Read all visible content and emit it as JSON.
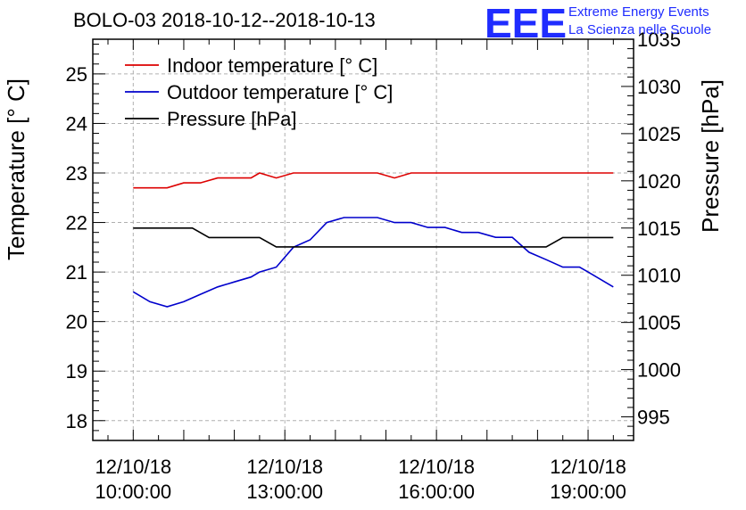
{
  "chart_data": {
    "type": "line",
    "title": "BOLO-03 2018-10-12--2018-10-13",
    "logo": {
      "letters": "EEE",
      "line1": "Extreme Energy Events",
      "line2": "La Scienza nelle Scuole"
    },
    "ylabel": "Temperature [° C]",
    "y2label": "Pressure [hPa]",
    "ylim": [
      17.6,
      25.7
    ],
    "y2lim": [
      992.5,
      1035
    ],
    "xlim": [
      9.2,
      19.9
    ],
    "grid": true,
    "legend_position": "top-left",
    "x_ticks": [
      {
        "value": 10,
        "line1": "12/10/18",
        "line2": "10:00:00"
      },
      {
        "value": 13,
        "line1": "12/10/18",
        "line2": "13:00:00"
      },
      {
        "value": 16,
        "line1": "12/10/18",
        "line2": "16:00:00"
      },
      {
        "value": 19,
        "line1": "12/10/18",
        "line2": "19:00:00"
      }
    ],
    "y_ticks": [
      18,
      19,
      20,
      21,
      22,
      23,
      24,
      25
    ],
    "y2_ticks": [
      995,
      1000,
      1005,
      1010,
      1015,
      1020,
      1025,
      1030,
      1035
    ],
    "series": [
      {
        "name": "Indoor temperature [° C]",
        "color": "#dd0000",
        "axis": "left",
        "points": [
          [
            10.0,
            22.7
          ],
          [
            10.33,
            22.7
          ],
          [
            10.67,
            22.7
          ],
          [
            11.0,
            22.8
          ],
          [
            11.33,
            22.8
          ],
          [
            11.67,
            22.9
          ],
          [
            12.0,
            22.9
          ],
          [
            12.33,
            22.9
          ],
          [
            12.5,
            23.0
          ],
          [
            12.83,
            22.9
          ],
          [
            13.17,
            23.0
          ],
          [
            13.5,
            23.0
          ],
          [
            13.83,
            23.0
          ],
          [
            14.17,
            23.0
          ],
          [
            14.5,
            23.0
          ],
          [
            14.83,
            23.0
          ],
          [
            15.17,
            22.9
          ],
          [
            15.5,
            23.0
          ],
          [
            15.83,
            23.0
          ],
          [
            16.17,
            23.0
          ],
          [
            16.5,
            23.0
          ],
          [
            16.83,
            23.0
          ],
          [
            17.17,
            23.0
          ],
          [
            17.5,
            23.0
          ],
          [
            17.83,
            23.0
          ],
          [
            18.17,
            23.0
          ],
          [
            18.5,
            23.0
          ],
          [
            18.83,
            23.0
          ],
          [
            19.17,
            23.0
          ],
          [
            19.5,
            23.0
          ]
        ]
      },
      {
        "name": "Outdoor temperature [° C]",
        "color": "#0000cc",
        "axis": "left",
        "points": [
          [
            10.0,
            20.6
          ],
          [
            10.33,
            20.4
          ],
          [
            10.67,
            20.3
          ],
          [
            11.0,
            20.4
          ],
          [
            11.33,
            20.55
          ],
          [
            11.67,
            20.7
          ],
          [
            12.0,
            20.8
          ],
          [
            12.33,
            20.9
          ],
          [
            12.5,
            21.0
          ],
          [
            12.83,
            21.1
          ],
          [
            13.17,
            21.5
          ],
          [
            13.5,
            21.65
          ],
          [
            13.83,
            22.0
          ],
          [
            14.17,
            22.1
          ],
          [
            14.5,
            22.1
          ],
          [
            14.83,
            22.1
          ],
          [
            15.17,
            22.0
          ],
          [
            15.5,
            22.0
          ],
          [
            15.83,
            21.9
          ],
          [
            16.17,
            21.9
          ],
          [
            16.5,
            21.8
          ],
          [
            16.83,
            21.8
          ],
          [
            17.17,
            21.7
          ],
          [
            17.5,
            21.7
          ],
          [
            17.83,
            21.4
          ],
          [
            18.17,
            21.25
          ],
          [
            18.5,
            21.1
          ],
          [
            18.83,
            21.1
          ],
          [
            19.0,
            21.0
          ],
          [
            19.5,
            20.7
          ]
        ]
      },
      {
        "name": "Pressure [hPa]",
        "color": "#000000",
        "axis": "right",
        "points": [
          [
            10.0,
            1015
          ],
          [
            10.33,
            1015
          ],
          [
            10.67,
            1015
          ],
          [
            11.0,
            1015
          ],
          [
            11.17,
            1015
          ],
          [
            11.5,
            1014
          ],
          [
            11.83,
            1014
          ],
          [
            12.17,
            1014
          ],
          [
            12.5,
            1014
          ],
          [
            12.83,
            1013
          ],
          [
            13.17,
            1013
          ],
          [
            13.5,
            1013
          ],
          [
            13.83,
            1013
          ],
          [
            14.17,
            1013
          ],
          [
            14.5,
            1013
          ],
          [
            14.83,
            1013
          ],
          [
            15.17,
            1013
          ],
          [
            15.5,
            1013
          ],
          [
            15.83,
            1013
          ],
          [
            16.17,
            1013
          ],
          [
            16.5,
            1013
          ],
          [
            16.83,
            1013
          ],
          [
            17.17,
            1013
          ],
          [
            17.5,
            1013
          ],
          [
            17.83,
            1013
          ],
          [
            18.17,
            1013
          ],
          [
            18.5,
            1014
          ],
          [
            18.83,
            1014
          ],
          [
            19.17,
            1014
          ],
          [
            19.5,
            1014
          ]
        ]
      }
    ]
  }
}
